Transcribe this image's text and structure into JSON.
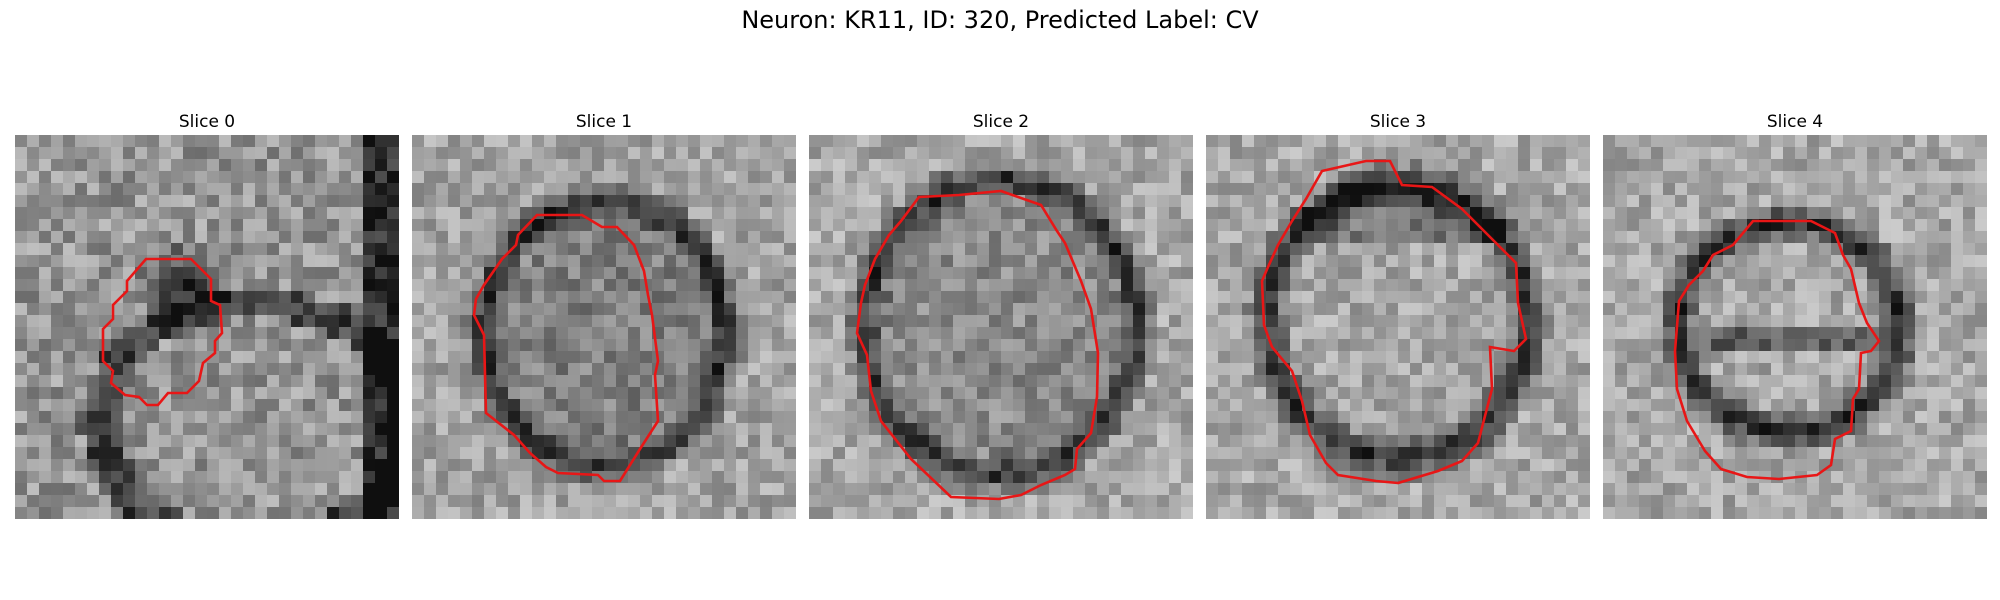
{
  "figure": {
    "title": "Neuron: KR11, ID: 320, Predicted Label: CV"
  },
  "contour_color": "#e81616",
  "panels": [
    {
      "title": "Slice 0"
    },
    {
      "title": "Slice 1"
    },
    {
      "title": "Slice 2"
    },
    {
      "title": "Slice 3"
    },
    {
      "title": "Slice 4"
    }
  ]
}
